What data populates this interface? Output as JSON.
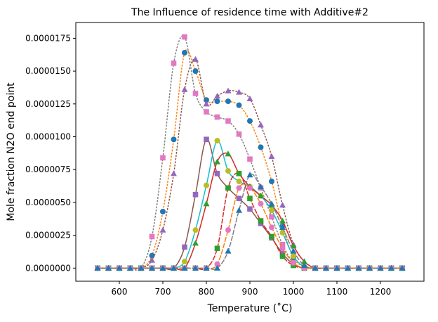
{
  "chart_data": {
    "type": "line",
    "title": "The Influence of residence time with Additive#2",
    "xlabel": "Temperature (˚C)",
    "ylabel": "Mole fraction N2O end point",
    "xlim": [
      500,
      1300
    ],
    "ylim": [
      -1e-06,
      1.87e-05
    ],
    "xticks": [
      600,
      700,
      800,
      900,
      1000,
      1100,
      1200
    ],
    "yticks": [
      0,
      2.5e-06,
      5e-06,
      7.5e-06,
      1e-05,
      1.25e-05,
      1.5e-05,
      1.75e-05
    ],
    "ytick_labels": [
      "0.0000000",
      "0.0000025",
      "0.0000050",
      "0.0000075",
      "0.0000100",
      "0.0000125",
      "0.0000150",
      "0.0000175"
    ],
    "grid": false,
    "legend": "none",
    "x": [
      550,
      575,
      600,
      625,
      650,
      675,
      700,
      725,
      750,
      775,
      800,
      825,
      850,
      875,
      900,
      925,
      950,
      975,
      1000,
      1025,
      1050,
      1075,
      1100,
      1125,
      1150,
      1175,
      1200,
      1225,
      1250
    ],
    "series": [
      {
        "style": "dotted",
        "color": "#ff7f0e",
        "marker": "circle",
        "marker_color": "#1f77b4",
        "values": [
          0,
          0,
          0,
          0,
          0,
          9.5e-07,
          4.3e-06,
          9.8e-06,
          1.64e-05,
          1.5e-05,
          1.28e-05,
          1.27e-05,
          1.27e-05,
          1.24e-05,
          1.12e-05,
          9.2e-06,
          6.6e-06,
          3.2e-06,
          8e-07,
          1e-07,
          0,
          0,
          0,
          0,
          0,
          0,
          0,
          0,
          0
        ]
      },
      {
        "style": "dotted",
        "color": "#8c564b",
        "marker": "triangle",
        "marker_color": "#9467bd",
        "values": [
          0,
          0,
          0,
          0,
          0,
          6e-07,
          2.9e-06,
          7.2e-06,
          1.36e-05,
          1.59e-05,
          1.25e-05,
          1.31e-05,
          1.35e-05,
          1.34e-05,
          1.29e-05,
          1.09e-05,
          8.5e-06,
          4.8e-06,
          1.8e-06,
          5e-07,
          0,
          0,
          0,
          0,
          0,
          0,
          0,
          0,
          0
        ]
      },
      {
        "style": "dotted",
        "color": "#7f7f7f",
        "marker": "square",
        "marker_color": "#e377c2",
        "values": [
          0,
          0,
          0,
          0,
          0,
          2.4e-06,
          8.4e-06,
          1.56e-05,
          1.76e-05,
          1.33e-05,
          1.19e-05,
          1.15e-05,
          1.12e-05,
          1.02e-05,
          8.3e-06,
          6.1e-06,
          3.9e-06,
          1.8e-06,
          4e-07,
          0,
          0,
          0,
          0,
          0,
          0,
          0,
          0,
          0,
          0
        ]
      },
      {
        "style": "solid",
        "color": "#8c564b",
        "marker": "square",
        "marker_color": "#9467bd",
        "values": [
          0,
          0,
          0,
          0,
          0,
          0,
          0,
          0,
          1.6e-06,
          5.6e-06,
          9.8e-06,
          7.2e-06,
          6.1e-06,
          5.3e-06,
          4.5e-06,
          3.4e-06,
          2.3e-06,
          1.1e-06,
          3e-07,
          0,
          0,
          0,
          0,
          0,
          0,
          0,
          0,
          0,
          0
        ]
      },
      {
        "style": "solid",
        "color": "#17becf",
        "marker": "circle",
        "marker_color": "#bcbd22",
        "values": [
          0,
          0,
          0,
          0,
          0,
          0,
          0,
          0,
          5e-07,
          2.9e-06,
          6.3e-06,
          9.7e-06,
          7.4e-06,
          6.6e-06,
          6.2e-06,
          5.5e-06,
          4.4e-06,
          2.7e-06,
          9e-07,
          1e-07,
          0,
          0,
          0,
          0,
          0,
          0,
          0,
          0,
          0
        ]
      },
      {
        "style": "solid",
        "color": "#d62728",
        "marker": "triangle",
        "marker_color": "#2ca02c",
        "values": [
          0,
          0,
          0,
          0,
          0,
          0,
          0,
          0,
          0,
          1.9e-06,
          4.9e-06,
          8.1e-06,
          8.7e-06,
          7.2e-06,
          6.2e-06,
          5.5e-06,
          4.8e-06,
          3.6e-06,
          1.7e-06,
          5e-07,
          0,
          0,
          0,
          0,
          0,
          0,
          0,
          0,
          0
        ]
      },
      {
        "style": "dashed",
        "color": "#d62728",
        "marker": "square",
        "marker_color": "#2ca02c",
        "values": [
          0,
          0,
          0,
          0,
          0,
          0,
          0,
          0,
          0,
          0,
          0,
          1.5e-06,
          6.1e-06,
          7.2e-06,
          5.3e-06,
          3.6e-06,
          2.4e-06,
          9e-07,
          2e-07,
          0,
          0,
          0,
          0,
          0,
          0,
          0,
          0,
          0,
          0
        ]
      },
      {
        "style": "dashed",
        "color": "#ff7f0e",
        "marker": "circle",
        "marker_color": "#e377c2",
        "values": [
          0,
          0,
          0,
          0,
          0,
          0,
          0,
          0,
          0,
          0,
          0,
          3e-07,
          2.9e-06,
          6.1e-06,
          6.1e-06,
          4.9e-06,
          3.1e-06,
          1.5e-06,
          4e-07,
          0,
          0,
          0,
          0,
          0,
          0,
          0,
          0,
          0,
          0
        ]
      },
      {
        "style": "dashed",
        "color": "#7f7f7f",
        "marker": "triangle",
        "marker_color": "#1f77b4",
        "values": [
          0,
          0,
          0,
          0,
          0,
          0,
          0,
          0,
          0,
          0,
          0,
          0,
          1.3e-06,
          4.4e-06,
          7.1e-06,
          6.2e-06,
          4.9e-06,
          3.1e-06,
          1.3e-06,
          2e-07,
          0,
          0,
          0,
          0,
          0,
          0,
          0,
          0,
          0
        ]
      }
    ]
  }
}
